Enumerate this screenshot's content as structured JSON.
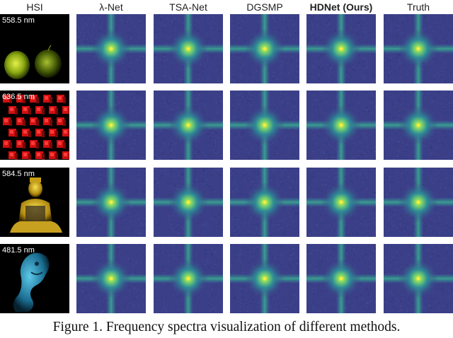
{
  "figure": {
    "columns": [
      "HSI",
      "λ-Net",
      "TSA-Net",
      "DGSMP",
      "HDNet (Ours)",
      "Truth"
    ],
    "bold_column_index": 4,
    "rows": [
      {
        "wavelength": "558.5 nm",
        "scene": "two green apples",
        "tint": "#b8d020"
      },
      {
        "wavelength": "636.5 nm",
        "scene": "red cubes",
        "tint": "#e01818"
      },
      {
        "wavelength": "584.5 nm",
        "scene": "golden figurine",
        "tint": "#e0c020"
      },
      {
        "wavelength": "481.5 nm",
        "scene": "blue lion statue",
        "tint": "#2a9fc8"
      }
    ],
    "caption": "Figure 1. Frequency spectra visualization of different methods."
  },
  "colors": {
    "spectrum_dark": "#3b3f88",
    "spectrum_mid": "#2f7f9a",
    "spectrum_bright": "#6fd36a",
    "spectrum_center": "#f4ee3a"
  }
}
